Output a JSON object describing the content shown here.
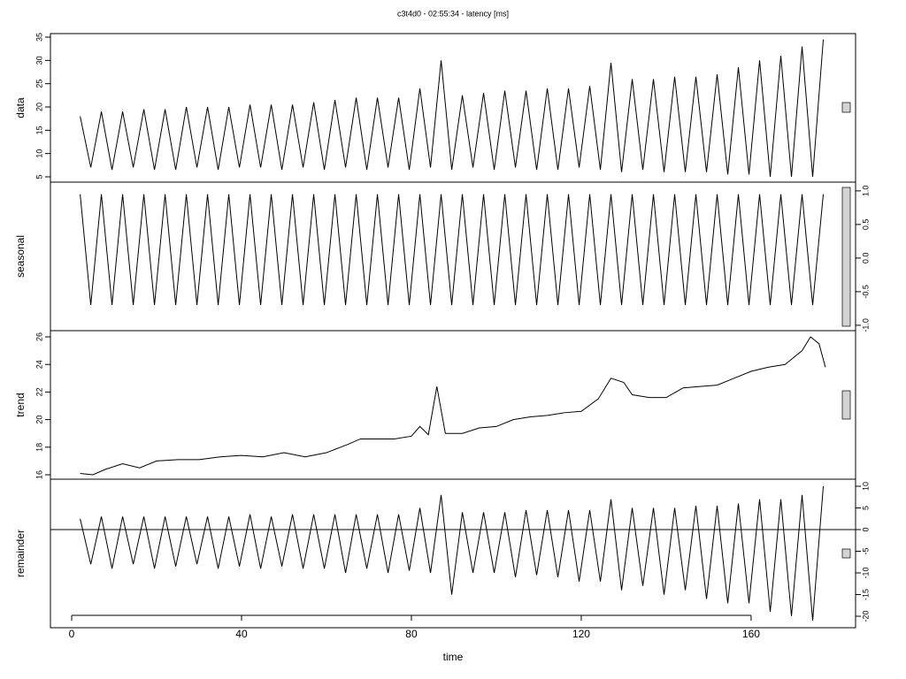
{
  "chart_data": [
    {
      "type": "line",
      "title": "c3t4d0 - 02:55:34 - latency [ms]",
      "ylabel": "data",
      "color": "#000000",
      "ytick_side": "left",
      "xlim": [
        -5,
        184.6
      ],
      "ylim": [
        3.86,
        35.76
      ],
      "yticks": [
        5,
        10,
        15,
        20,
        25,
        30,
        35
      ],
      "x": [
        2,
        4.5,
        7,
        9.5,
        12,
        14.5,
        17,
        19.5,
        22,
        24.5,
        27,
        29.5,
        32,
        34.5,
        37,
        39.5,
        42,
        44.5,
        47,
        49.5,
        52,
        54.5,
        57,
        59.5,
        62,
        64.5,
        67,
        69.5,
        72,
        74.5,
        77,
        79.5,
        82,
        84.5,
        87,
        89.5,
        92,
        94.5,
        97,
        99.5,
        102,
        104.5,
        107,
        109.5,
        112,
        114.5,
        117,
        119.5,
        122,
        124.5,
        127,
        129.5,
        132,
        134.5,
        137,
        139.5,
        142,
        144.5,
        147,
        149.5,
        152,
        154.5,
        157,
        159.5,
        162,
        164.5,
        167,
        169.5,
        172,
        174.5,
        177
      ],
      "values": [
        18,
        7,
        19,
        6.5,
        19,
        7,
        19.5,
        6.5,
        19.5,
        6.5,
        20,
        7,
        20,
        6.5,
        20,
        7,
        20.5,
        7,
        20.5,
        6.5,
        20.5,
        7,
        21,
        6.5,
        21.5,
        7,
        22,
        6.5,
        22,
        7,
        22,
        6.5,
        24,
        7,
        30,
        6.5,
        22.5,
        7,
        23,
        6.5,
        23.5,
        7,
        23.5,
        6.5,
        24,
        6.5,
        24,
        7,
        24.5,
        6.5,
        29.5,
        6,
        26,
        6.5,
        26,
        6,
        26.5,
        6,
        26.5,
        6,
        27,
        5.5,
        28.5,
        5.5,
        30,
        5,
        31,
        5,
        33,
        5,
        34.5
      ]
    },
    {
      "type": "line",
      "ylabel": "seasonal",
      "color": "#000000",
      "ytick_side": "right",
      "xlim": [
        -5,
        184.6
      ],
      "ylim": [
        -1.08,
        1.13
      ],
      "yticks": [
        {
          "value": -1.0,
          "label": "-1.0"
        },
        -0.5,
        {
          "value": 0.0,
          "label": "0.0"
        },
        0.5,
        {
          "value": 1.0,
          "label": "1.0"
        }
      ],
      "x": [
        2,
        4.5,
        7,
        9.5,
        12,
        14.5,
        17,
        19.5,
        22,
        24.5,
        27,
        29.5,
        32,
        34.5,
        37,
        39.5,
        42,
        44.5,
        47,
        49.5,
        52,
        54.5,
        57,
        59.5,
        62,
        64.5,
        67,
        69.5,
        72,
        74.5,
        77,
        79.5,
        82,
        84.5,
        87,
        89.5,
        92,
        94.5,
        97,
        99.5,
        102,
        104.5,
        107,
        109.5,
        112,
        114.5,
        117,
        119.5,
        122,
        124.5,
        127,
        129.5,
        132,
        134.5,
        137,
        139.5,
        142,
        144.5,
        147,
        149.5,
        152,
        154.5,
        157,
        159.5,
        162,
        164.5,
        167,
        169.5,
        172,
        174.5,
        177
      ],
      "values": [
        0.95,
        -0.7,
        0.95,
        -0.7,
        0.95,
        -0.7,
        0.95,
        -0.7,
        0.95,
        -0.7,
        0.95,
        -0.7,
        0.95,
        -0.7,
        0.95,
        -0.7,
        0.95,
        -0.7,
        0.95,
        -0.7,
        0.95,
        -0.7,
        0.95,
        -0.7,
        0.95,
        -0.7,
        0.95,
        -0.7,
        0.95,
        -0.7,
        0.95,
        -0.7,
        0.95,
        -0.7,
        0.95,
        -0.7,
        0.95,
        -0.7,
        0.95,
        -0.7,
        0.95,
        -0.7,
        0.95,
        -0.7,
        0.95,
        -0.7,
        0.95,
        -0.7,
        0.95,
        -0.7,
        0.95,
        -0.7,
        0.95,
        -0.7,
        0.95,
        -0.7,
        0.95,
        -0.7,
        0.95,
        -0.7,
        0.95,
        -0.7,
        0.95,
        -0.7,
        0.95,
        -0.7,
        0.95,
        -0.7,
        0.95,
        -0.7,
        0.95
      ]
    },
    {
      "type": "line",
      "ylabel": "trend",
      "color": "#000000",
      "ytick_side": "left",
      "xlim": [
        -5,
        184.6
      ],
      "ylim": [
        15.68,
        26.45
      ],
      "yticks": [
        16,
        18,
        20,
        22,
        24,
        26
      ],
      "x": [
        2,
        5,
        8,
        12,
        16,
        20,
        25,
        30,
        35,
        40,
        45,
        50,
        55,
        60,
        65,
        68,
        72,
        76,
        80,
        82,
        84,
        86,
        88,
        92,
        96,
        100,
        104,
        108,
        112,
        116,
        120,
        124,
        127,
        130,
        132,
        136,
        140,
        144,
        148,
        152,
        156,
        160,
        164,
        168,
        172,
        174,
        176,
        177.5
      ],
      "values": [
        16.1,
        16.0,
        16.4,
        16.8,
        16.5,
        17.0,
        17.1,
        17.1,
        17.3,
        17.4,
        17.3,
        17.6,
        17.3,
        17.6,
        18.2,
        18.6,
        18.6,
        18.6,
        18.8,
        19.5,
        18.9,
        22.4,
        19.0,
        19.0,
        19.4,
        19.5,
        20.0,
        20.2,
        20.3,
        20.5,
        20.6,
        21.5,
        23.0,
        22.7,
        21.8,
        21.6,
        21.6,
        22.3,
        22.4,
        22.5,
        23.0,
        23.5,
        23.8,
        24.0,
        25.0,
        26.0,
        25.5,
        23.8
      ]
    },
    {
      "type": "line",
      "ylabel": "remainder",
      "xlabel": "time",
      "color": "#000000",
      "ytick_side": "right",
      "baseline": 0,
      "xlim": [
        -5,
        184.6
      ],
      "ylim": [
        -22.65,
        11.63
      ],
      "yticks": [
        -20,
        -15,
        -10,
        -5,
        0,
        5,
        10
      ],
      "xticks": [
        0,
        40,
        80,
        120,
        160
      ],
      "x": [
        2,
        4.5,
        7,
        9.5,
        12,
        14.5,
        17,
        19.5,
        22,
        24.5,
        27,
        29.5,
        32,
        34.5,
        37,
        39.5,
        42,
        44.5,
        47,
        49.5,
        52,
        54.5,
        57,
        59.5,
        62,
        64.5,
        67,
        69.5,
        72,
        74.5,
        77,
        79.5,
        82,
        84.5,
        87,
        89.5,
        92,
        94.5,
        97,
        99.5,
        102,
        104.5,
        107,
        109.5,
        112,
        114.5,
        117,
        119.5,
        122,
        124.5,
        127,
        129.5,
        132,
        134.5,
        137,
        139.5,
        142,
        144.5,
        147,
        149.5,
        152,
        154.5,
        157,
        159.5,
        162,
        164.5,
        167,
        169.5,
        172,
        174.5,
        177
      ],
      "values": [
        2.5,
        -8,
        3,
        -9,
        3,
        -8,
        3,
        -9,
        3,
        -8.5,
        3,
        -8,
        3,
        -9,
        3,
        -8.5,
        3.5,
        -9,
        3,
        -8.5,
        3.5,
        -9,
        3.5,
        -9,
        3.5,
        -10,
        3.5,
        -9,
        3.5,
        -10,
        3.5,
        -9.5,
        5,
        -10,
        8,
        -15,
        4,
        -10,
        4,
        -10,
        4,
        -11,
        4.5,
        -10.5,
        4.5,
        -11,
        4.5,
        -12,
        4.5,
        -12,
        7,
        -14,
        5,
        -13,
        5,
        -15,
        5,
        -14,
        5.5,
        -16,
        5.5,
        -17,
        6,
        -17,
        7,
        -19,
        7,
        -20,
        8,
        -21,
        10
      ]
    }
  ]
}
